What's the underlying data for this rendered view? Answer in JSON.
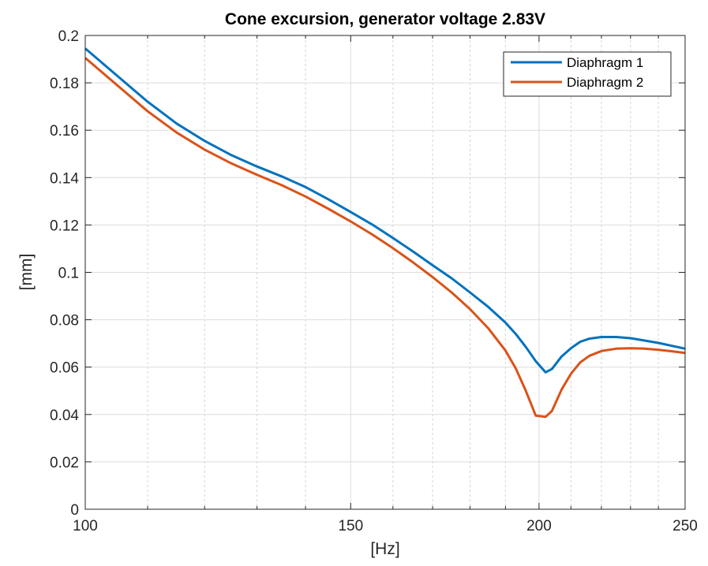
{
  "chart_data": {
    "type": "line",
    "title": "Cone excursion, generator voltage 2.83V",
    "xlabel": "[Hz]",
    "ylabel": "[mm]",
    "xscale": "log",
    "xlim": [
      100,
      250
    ],
    "ylim": [
      0,
      0.2
    ],
    "x_major_ticks": [
      100,
      150,
      200,
      250
    ],
    "x_major_tick_labels": [
      "100",
      "150",
      "200",
      "250"
    ],
    "x_minor_ticks": [
      110,
      120,
      130,
      140,
      160,
      170,
      180,
      190,
      210,
      220,
      230,
      240
    ],
    "y_ticks": [
      0,
      0.02,
      0.04,
      0.06,
      0.08,
      0.1,
      0.12,
      0.14,
      0.16,
      0.18,
      0.2
    ],
    "y_tick_labels": [
      "0",
      "0.02",
      "0.04",
      "0.06",
      "0.08",
      "0.1",
      "0.12",
      "0.14",
      "0.16",
      "0.18",
      "0.2"
    ],
    "grid": true,
    "legend_position": "top-right",
    "series": [
      {
        "name": "Diaphragm 1",
        "color": "#0072BD",
        "x": [
          100,
          105,
          110,
          115,
          120,
          125,
          130,
          135,
          140,
          145,
          150,
          155,
          160,
          165,
          170,
          175,
          180,
          185,
          190,
          193,
          196,
          199,
          202,
          204,
          207,
          210,
          213,
          216,
          220,
          225,
          230,
          235,
          240,
          245,
          250
        ],
        "y": [
          0.1945,
          0.183,
          0.172,
          0.1628,
          0.1555,
          0.1495,
          0.1447,
          0.1405,
          0.136,
          0.1308,
          0.1255,
          0.1202,
          0.1145,
          0.1088,
          0.103,
          0.0975,
          0.0915,
          0.0855,
          0.0788,
          0.074,
          0.0685,
          0.0625,
          0.0578,
          0.0592,
          0.0645,
          0.068,
          0.0707,
          0.072,
          0.0727,
          0.0727,
          0.0722,
          0.0712,
          0.0702,
          0.069,
          0.0678
        ]
      },
      {
        "name": "Diaphragm 2",
        "color": "#D95319",
        "x": [
          100,
          105,
          110,
          115,
          120,
          125,
          130,
          135,
          140,
          145,
          150,
          155,
          160,
          165,
          170,
          175,
          180,
          185,
          190,
          193,
          196,
          199,
          202,
          204,
          207,
          210,
          213,
          216,
          220,
          225,
          230,
          235,
          240,
          245,
          250
        ],
        "y": [
          0.1905,
          0.179,
          0.168,
          0.159,
          0.1518,
          0.146,
          0.1412,
          0.1368,
          0.132,
          0.1268,
          0.1215,
          0.116,
          0.1102,
          0.1042,
          0.098,
          0.0915,
          0.0845,
          0.0765,
          0.067,
          0.0595,
          0.05,
          0.0395,
          0.039,
          0.0415,
          0.0505,
          0.0572,
          0.062,
          0.0648,
          0.0668,
          0.0678,
          0.068,
          0.0678,
          0.0673,
          0.0667,
          0.066
        ]
      }
    ]
  }
}
